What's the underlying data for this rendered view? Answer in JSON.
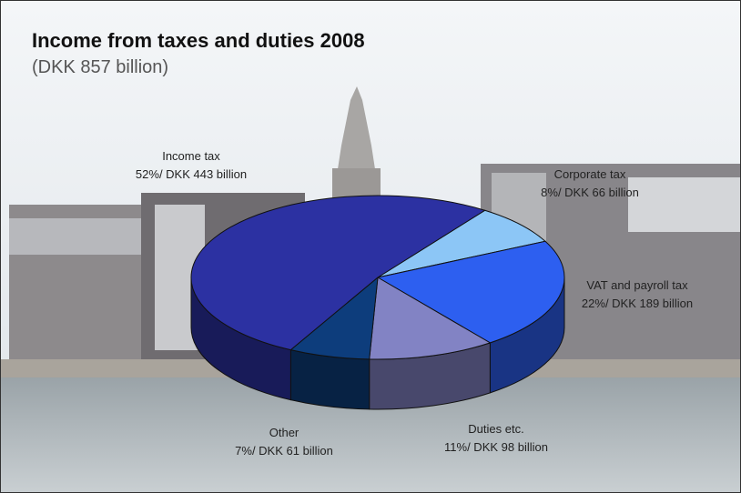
{
  "chart_data": {
    "type": "pie",
    "title": "Income from taxes and duties 2008",
    "subtitle": "(DKK 857 billion)",
    "categories": [
      "Corporate tax",
      "VAT and payroll tax",
      "Duties etc.",
      "Other",
      "Income tax"
    ],
    "values": [
      8,
      22,
      11,
      7,
      52
    ],
    "value_labels": [
      "8%/ DKK 66 billion",
      "22%/ DKK 189 billion",
      "11%/ DKK 98 billion",
      "7%/ DKK 61 billion",
      "52%/ DKK 443 billion"
    ],
    "colors": [
      "#8cc6f6",
      "#2d5ff0",
      "#8283c4",
      "#0d3d7c",
      "#2c31a2"
    ]
  }
}
